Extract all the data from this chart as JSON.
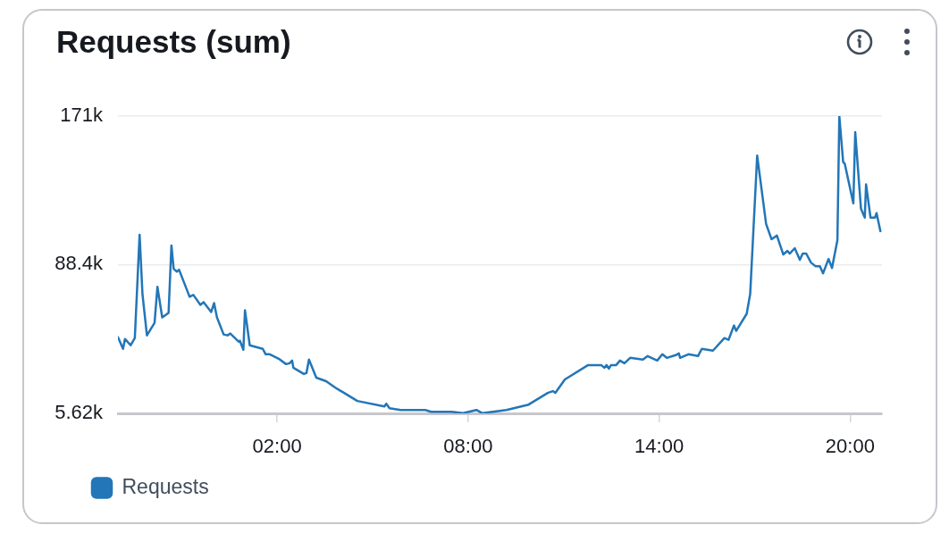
{
  "chart_data": {
    "type": "line",
    "title": "Requests (sum)",
    "x": [
      -3.0,
      -2.84,
      -2.78,
      -2.6,
      -2.47,
      -2.32,
      -2.23,
      -2.09,
      -1.85,
      -1.76,
      -1.61,
      -1.41,
      -1.32,
      -1.25,
      -1.15,
      -1.08,
      -0.75,
      -0.63,
      -0.41,
      -0.31,
      -0.07,
      0.02,
      0.11,
      0.32,
      0.44,
      0.53,
      0.79,
      0.83,
      0.94,
      0.99,
      1.14,
      1.55,
      1.64,
      1.77,
      2.05,
      2.28,
      2.39,
      2.47,
      2.51,
      2.84,
      2.92,
      3.0,
      3.23,
      3.54,
      3.82,
      3.96,
      4.06,
      4.52,
      5.37,
      5.43,
      5.53,
      5.88,
      6.65,
      6.84,
      7.47,
      7.84,
      8.26,
      8.45,
      9.2,
      9.9,
      10.5,
      10.66,
      10.74,
      11.04,
      11.77,
      12.18,
      12.28,
      12.35,
      12.42,
      12.49,
      12.65,
      12.77,
      12.91,
      13.09,
      13.49,
      13.64,
      13.94,
      14.1,
      14.24,
      14.52,
      14.62,
      14.66,
      14.92,
      15.22,
      15.34,
      15.69,
      16.05,
      16.18,
      16.35,
      16.42,
      16.75,
      16.86,
      17.08,
      17.36,
      17.53,
      17.7,
      17.9,
      18.03,
      18.1,
      18.26,
      18.42,
      18.51,
      18.62,
      18.77,
      18.91,
      19.05,
      19.15,
      19.32,
      19.43,
      19.6,
      19.66,
      19.78,
      19.83,
      20.1,
      20.16,
      20.34,
      20.46,
      20.5,
      20.64,
      20.78,
      20.83,
      20.95
    ],
    "series": [
      {
        "name": "Requests",
        "color": "#2376b7",
        "values": [
          48000,
          41500,
          47000,
          43500,
          47500,
          105000,
          72000,
          49000,
          56000,
          76000,
          59000,
          61500,
          99000,
          86000,
          84500,
          85500,
          70500,
          71500,
          66000,
          67500,
          62000,
          67000,
          59000,
          49500,
          49000,
          50000,
          45500,
          46000,
          41000,
          63000,
          43500,
          41500,
          38500,
          38500,
          36000,
          33000,
          33500,
          35000,
          31000,
          27500,
          28000,
          35500,
          25500,
          23500,
          20000,
          18500,
          17500,
          12500,
          9500,
          11000,
          8500,
          7500,
          7500,
          6500,
          6500,
          5700,
          7500,
          5700,
          7500,
          10500,
          17000,
          18000,
          17000,
          24500,
          32500,
          32500,
          31000,
          32500,
          30500,
          32500,
          32500,
          35000,
          33500,
          36500,
          35500,
          37500,
          35000,
          38500,
          36500,
          38000,
          39000,
          36500,
          38500,
          37500,
          41500,
          40500,
          47500,
          46500,
          54500,
          51500,
          61000,
          72000,
          149000,
          111000,
          102500,
          104500,
          94000,
          96000,
          94500,
          97500,
          91000,
          94500,
          94500,
          89500,
          87500,
          87500,
          83500,
          91500,
          86500,
          102000,
          171000,
          145500,
          144500,
          122500,
          162000,
          119500,
          114500,
          133000,
          114500,
          114500,
          117000,
          107000
        ]
      }
    ],
    "xlim": [
      -3,
      21
    ],
    "xticks": [
      {
        "value": 2,
        "label": "02:00"
      },
      {
        "value": 8,
        "label": "08:00"
      },
      {
        "value": 14,
        "label": "14:00"
      },
      {
        "value": 20,
        "label": "20:00"
      }
    ],
    "ylim": [
      5620,
      171000
    ],
    "yticks": [
      {
        "value": 5620,
        "label": "5.62k"
      },
      {
        "value": 88400,
        "label": "88.4k"
      },
      {
        "value": 171000,
        "label": "171k"
      }
    ],
    "grid": "y",
    "legend": "bottom left",
    "marker": "none",
    "line_style": "solid"
  }
}
